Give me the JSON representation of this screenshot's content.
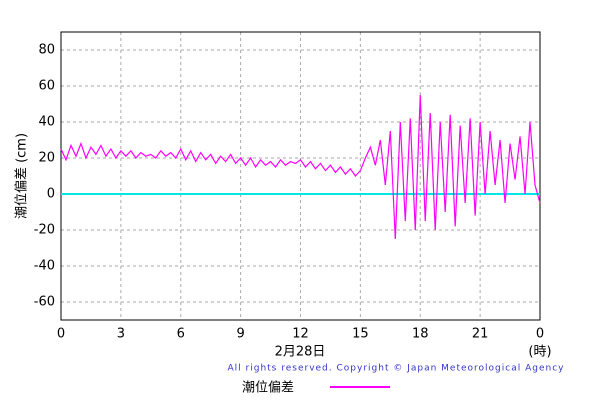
{
  "chart_data": {
    "type": "line",
    "y_label": "潮位偏差 (cm)",
    "x_label": "2月28日",
    "x_unit": "(時)",
    "copyright": "All rights reserved. Copyright © Japan Meteorological Agency",
    "xlim": [
      0,
      24
    ],
    "xticks": [
      0,
      3,
      6,
      9,
      12,
      15,
      18,
      21,
      {
        "value": 24,
        "label": "0"
      }
    ],
    "ylim": [
      -70,
      90
    ],
    "yticks": [
      -60,
      -40,
      -20,
      0,
      20,
      40,
      60,
      80
    ],
    "grid": true,
    "zero_line_color": "#00e5e5",
    "x": [
      0,
      0.25,
      0.5,
      0.75,
      1,
      1.25,
      1.5,
      1.75,
      2,
      2.25,
      2.5,
      2.75,
      3,
      3.25,
      3.5,
      3.75,
      4,
      4.25,
      4.5,
      4.75,
      5,
      5.25,
      5.5,
      5.75,
      6,
      6.25,
      6.5,
      6.75,
      7,
      7.25,
      7.5,
      7.75,
      8,
      8.25,
      8.5,
      8.75,
      9,
      9.25,
      9.5,
      9.75,
      10,
      10.25,
      10.5,
      10.75,
      11,
      11.25,
      11.5,
      11.75,
      12,
      12.25,
      12.5,
      12.75,
      13,
      13.25,
      13.5,
      13.75,
      14,
      14.25,
      14.5,
      14.75,
      15,
      15.25,
      15.5,
      15.75,
      16,
      16.25,
      16.5,
      16.75,
      17,
      17.25,
      17.5,
      17.75,
      18,
      18.25,
      18.5,
      18.75,
      19,
      19.25,
      19.5,
      19.75,
      20,
      20.25,
      20.5,
      20.75,
      21,
      21.25,
      21.5,
      21.75,
      22,
      22.25,
      22.5,
      22.75,
      23,
      23.25,
      23.5,
      23.75,
      24
    ],
    "series": [
      {
        "name": "潮位偏差",
        "color": "#ff00ff",
        "values": [
          25,
          19,
          27,
          21,
          28,
          20,
          26,
          22,
          27,
          21,
          25,
          20,
          24,
          21,
          24,
          20,
          23,
          21,
          22,
          20,
          24,
          21,
          23,
          20,
          25,
          19,
          24,
          18,
          23,
          19,
          22,
          17,
          21,
          18,
          22,
          17,
          20,
          16,
          20,
          15,
          19,
          16,
          18,
          15,
          19,
          16,
          18,
          17,
          19,
          15,
          18,
          14,
          17,
          13,
          16,
          12,
          15,
          11,
          14,
          10,
          13,
          20,
          26,
          16,
          30,
          5,
          35,
          -25,
          40,
          -15,
          42,
          -20,
          55,
          -15,
          45,
          -20,
          40,
          -10,
          44,
          -18,
          38,
          -5,
          42,
          -12,
          40,
          0,
          35,
          5,
          30,
          -5,
          28,
          8,
          32,
          0,
          40,
          5,
          -5
        ]
      }
    ]
  }
}
